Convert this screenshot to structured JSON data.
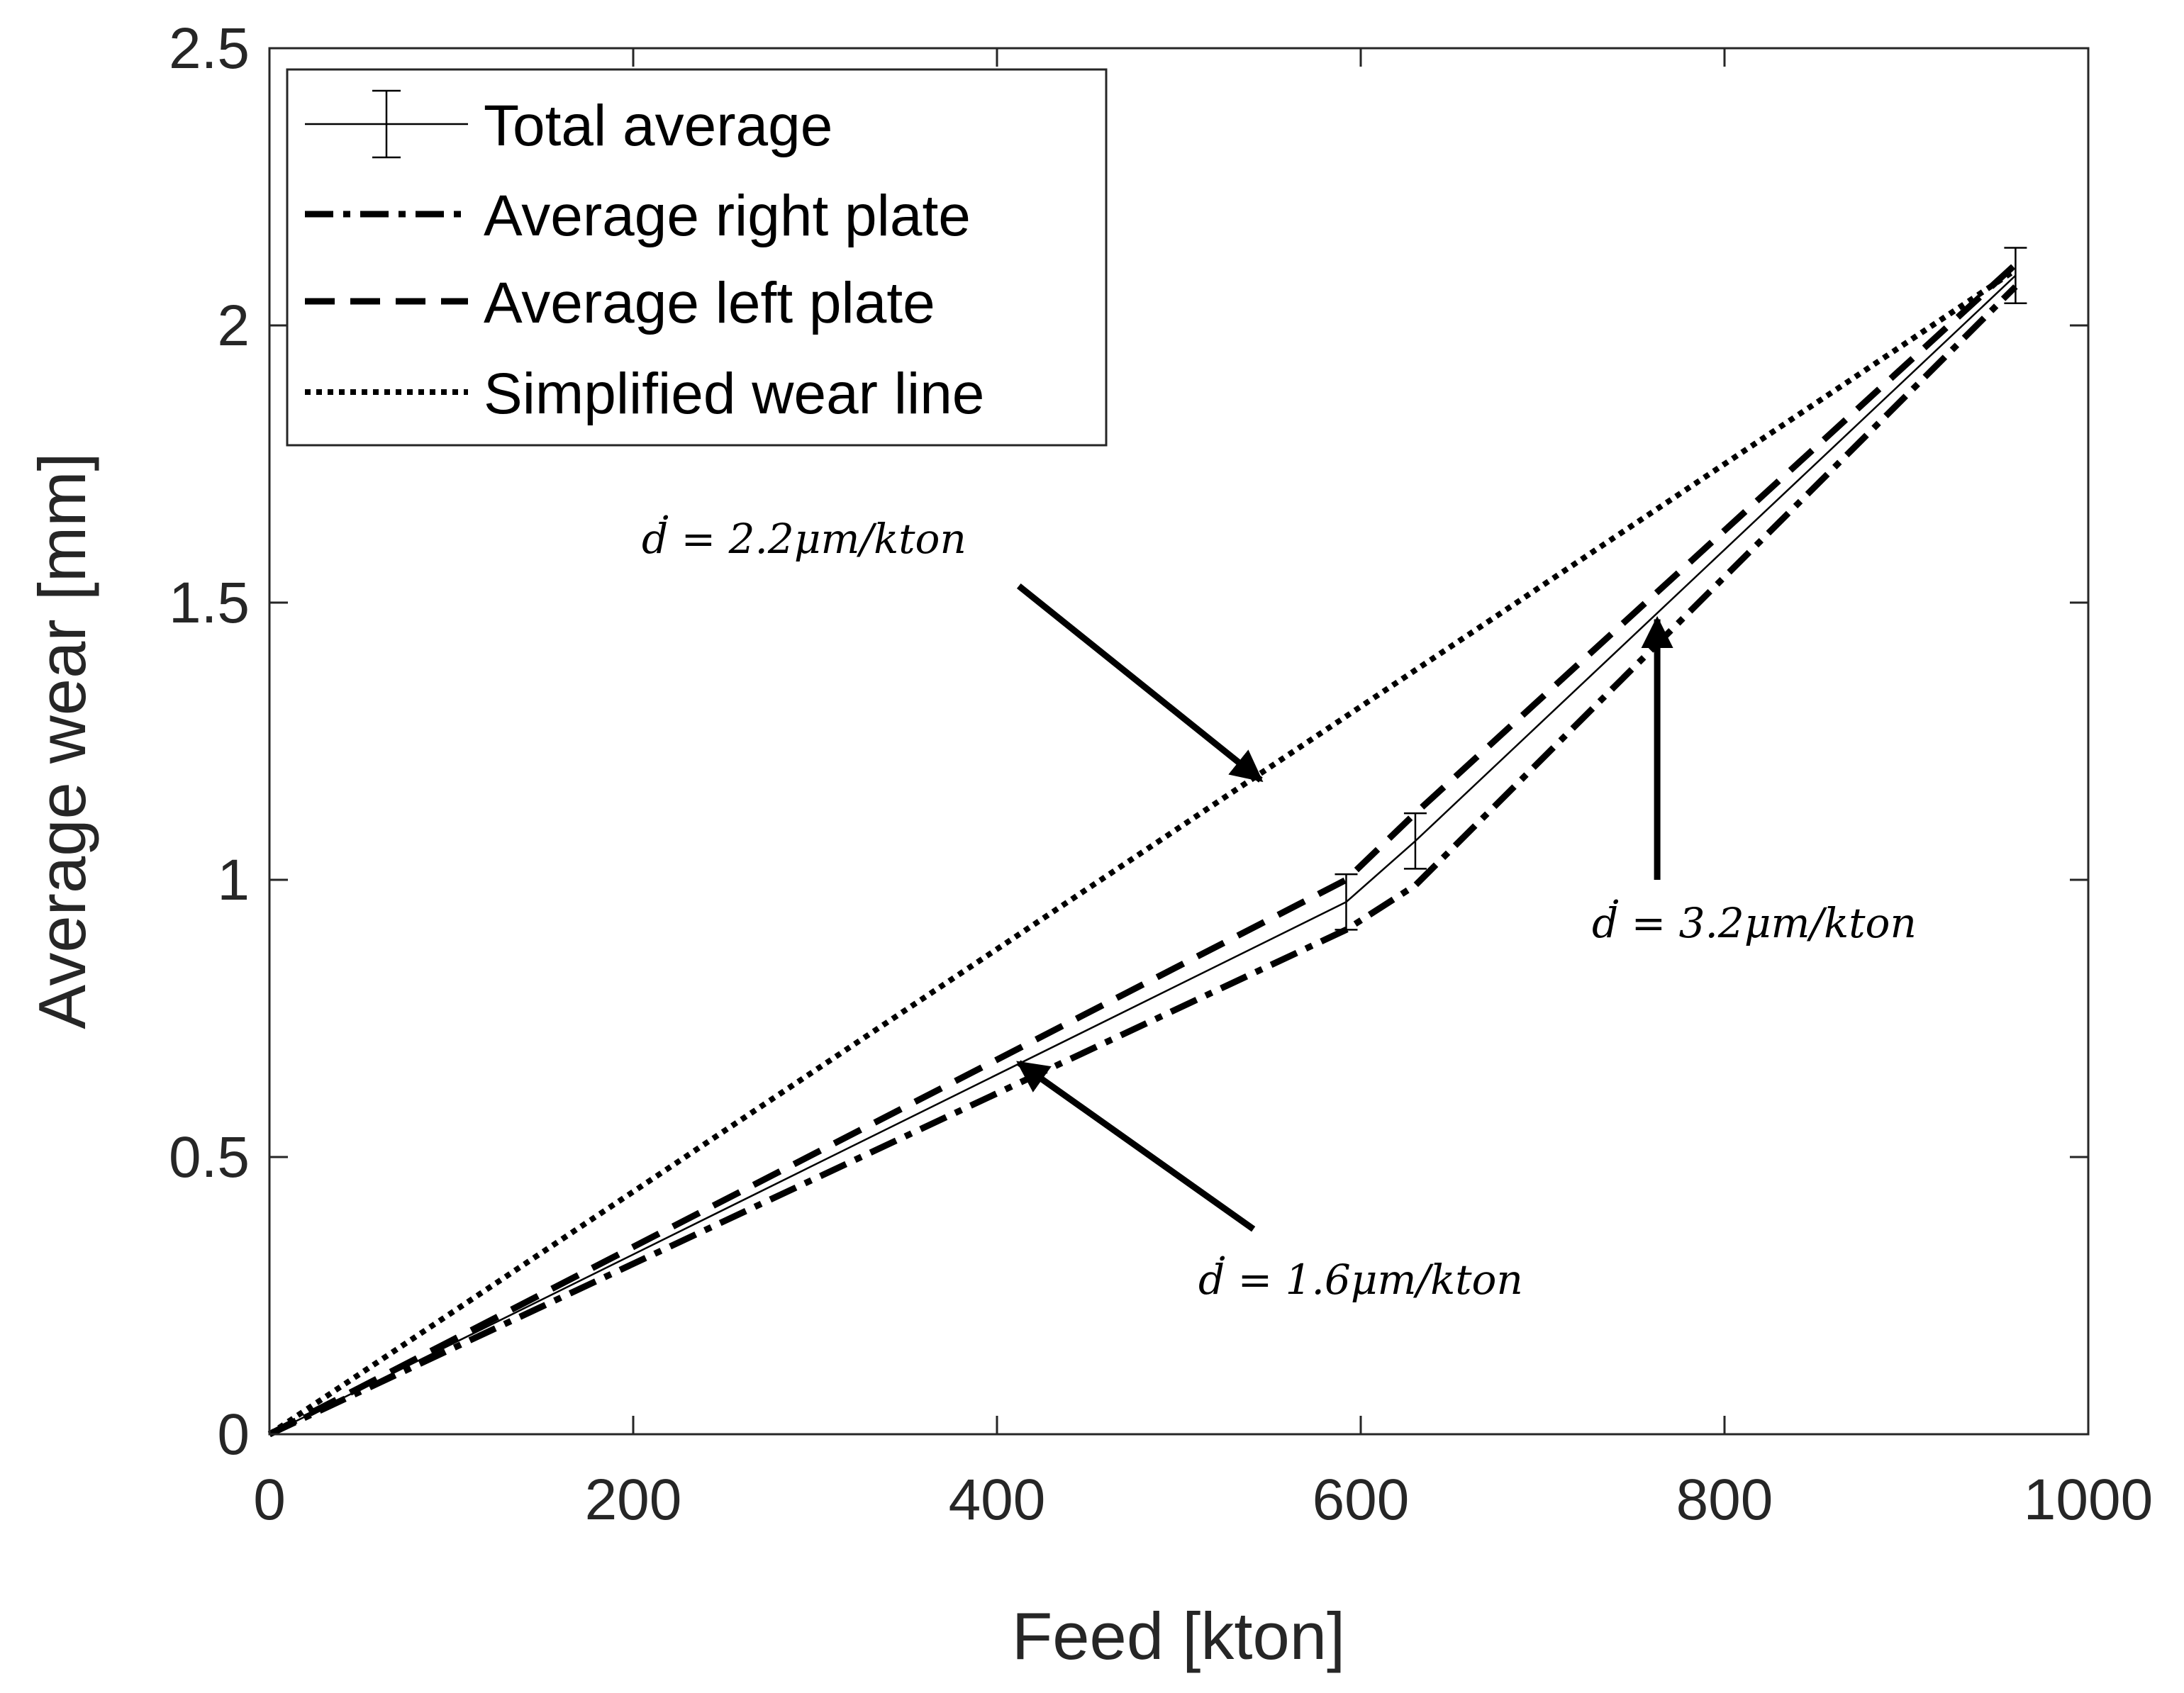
{
  "chart_data": {
    "type": "line",
    "xlabel": "Feed [kton]",
    "ylabel": "Average wear [mm]",
    "xlim": [
      0,
      1000
    ],
    "ylim": [
      0,
      2.5
    ],
    "xticks": [
      0,
      200,
      400,
      600,
      800,
      1000
    ],
    "xtick_labels": [
      "0",
      "200",
      "400",
      "600",
      "800",
      "1000"
    ],
    "yticks": [
      0,
      0.5,
      1,
      1.5,
      2,
      2.5
    ],
    "ytick_labels": [
      "0",
      "0.5",
      "1",
      "1.5",
      "2",
      "2.5"
    ],
    "grid": false,
    "legend_position": "top-left",
    "series": [
      {
        "name": "Total average",
        "style": "solid-thin-errorbar",
        "x": [
          0,
          592,
          630,
          960
        ],
        "y": [
          0,
          0.96,
          1.07,
          2.09
        ],
        "error": [
          0,
          0.05,
          0.05,
          0.05
        ]
      },
      {
        "name": "Average right plate",
        "style": "dash-dot",
        "x": [
          0,
          592,
          630,
          960
        ],
        "y": [
          0,
          0.91,
          0.99,
          2.07
        ]
      },
      {
        "name": "Average left plate",
        "style": "dashed",
        "x": [
          0,
          592,
          630,
          960
        ],
        "y": [
          0,
          1.0,
          1.12,
          2.11
        ]
      },
      {
        "name": "Simplified wear line",
        "style": "dotted",
        "x": [
          0,
          960
        ],
        "y": [
          0,
          2.1
        ]
      }
    ],
    "annotations": [
      {
        "id": "a1",
        "text": "ḋ = 2.2μm/kton",
        "arrow_from": [
          412,
          1.53
        ],
        "arrow_to": [
          545,
          1.18
        ]
      },
      {
        "id": "a2",
        "text": "ḋ = 3.2μm/kton",
        "arrow_from": [
          763,
          1.0
        ],
        "arrow_to": [
          763,
          1.47
        ]
      },
      {
        "id": "a3",
        "text": "ḋ = 1.6μm/kton",
        "arrow_from": [
          541,
          0.37
        ],
        "arrow_to": [
          412,
          0.67
        ]
      }
    ]
  }
}
